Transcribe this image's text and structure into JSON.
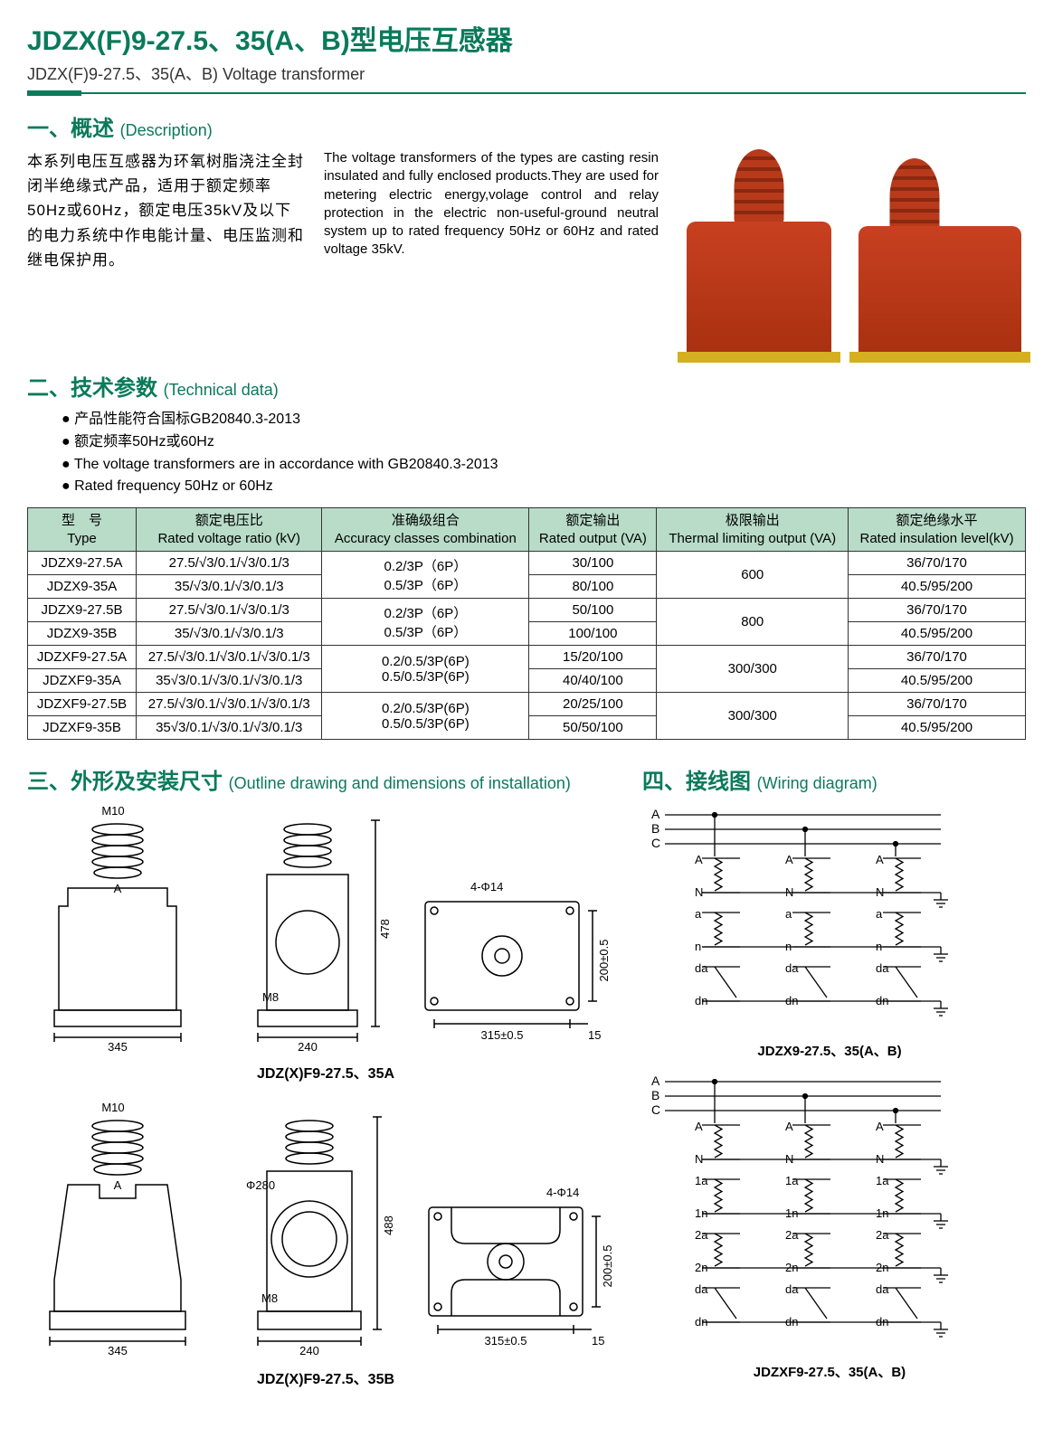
{
  "title": {
    "main": "JDZX(F)9-27.5、35(A、B)型电压互感器",
    "sub": "JDZX(F)9-27.5、35(A、B) Voltage transformer"
  },
  "sec_desc": {
    "heading_zh": "一、概述",
    "heading_en": "(Description)",
    "body_zh": "本系列电压互感器为环氧树脂浇注全封闭半绝缘式产品，适用于额定频率50Hz或60Hz，额定电压35kV及以下的电力系统中作电能计量、电压监测和继电保护用。",
    "body_en": "The voltage transformers of the types are casting resin insulated and fully enclosed products.They are used for metering electric energy,volage control and relay protection in the electric non-useful-ground neutral system up to rated frequency 50Hz or 60Hz and rated voltage 35kV."
  },
  "sec_tech": {
    "heading_zh": "二、技术参数",
    "heading_en": "(Technical data)",
    "bullets": [
      "产品性能符合国标GB20840.3-2013",
      "额定频率50Hz或60Hz",
      "The voltage transformers are in accordance with GB20840.3-2013",
      "Rated frequency 50Hz or 60Hz"
    ],
    "bullets_en_start": 2
  },
  "table": {
    "headers": [
      {
        "zh": "型　号",
        "en": "Type"
      },
      {
        "zh": "额定电压比",
        "en": "Rated voltage ratio (kV)"
      },
      {
        "zh": "准确级组合",
        "en": "Accuracy classes combination"
      },
      {
        "zh": "额定输出",
        "en": "Rated output (VA)"
      },
      {
        "zh": "极限输出",
        "en": "Thermal limiting output (VA)"
      },
      {
        "zh": "额定绝缘水平",
        "en": "Rated insulation level(kV)"
      }
    ],
    "groups": [
      {
        "accuracy": [
          "0.2/3P（6P）",
          "0.5/3P（6P）"
        ],
        "thermal": "600",
        "rows": [
          {
            "type": "JDZX9-27.5A",
            "ratio": "27.5/√3/0.1/√3/0.1/3",
            "rated": "30/100",
            "insul": "36/70/170"
          },
          {
            "type": "JDZX9-35A",
            "ratio": "35/√3/0.1/√3/0.1/3",
            "rated": "80/100",
            "insul": "40.5/95/200"
          }
        ]
      },
      {
        "accuracy": [
          "0.2/3P（6P）",
          "0.5/3P（6P）"
        ],
        "thermal": "800",
        "rows": [
          {
            "type": "JDZX9-27.5B",
            "ratio": "27.5/√3/0.1/√3/0.1/3",
            "rated": "50/100",
            "insul": "36/70/170"
          },
          {
            "type": "JDZX9-35B",
            "ratio": "35/√3/0.1/√3/0.1/3",
            "rated": "100/100",
            "insul": "40.5/95/200"
          }
        ]
      },
      {
        "accuracy": [
          "0.2/0.5/3P(6P)",
          "0.5/0.5/3P(6P)"
        ],
        "thermal": "300/300",
        "rows": [
          {
            "type": "JDZXF9-27.5A",
            "ratio": "27.5/√3/0.1/√3/0.1/√3/0.1/3",
            "rated": "15/20/100",
            "insul": "36/70/170"
          },
          {
            "type": "JDZXF9-35A",
            "ratio": "35√3/0.1/√3/0.1/√3/0.1/3",
            "rated": "40/40/100",
            "insul": "40.5/95/200"
          }
        ]
      },
      {
        "accuracy": [
          "0.2/0.5/3P(6P)",
          "0.5/0.5/3P(6P)"
        ],
        "thermal": "300/300",
        "rows": [
          {
            "type": "JDZXF9-27.5B",
            "ratio": "27.5/√3/0.1/√3/0.1/√3/0.1/3",
            "rated": "20/25/100",
            "insul": "36/70/170"
          },
          {
            "type": "JDZXF9-35B",
            "ratio": "35√3/0.1/√3/0.1/√3/0.1/3",
            "rated": "50/50/100",
            "insul": "40.5/95/200"
          }
        ]
      }
    ]
  },
  "sec_outline": {
    "heading_zh": "三、外形及安装尺寸",
    "heading_en": "(Outline drawing and dimensions of installation)",
    "set_a": {
      "label": "JDZ(X)F9-27.5、35A",
      "dims": {
        "M_top": "M10",
        "M_mid": "M8",
        "width1": "345",
        "width2": "240",
        "height": "478",
        "holes": "4-Φ14",
        "h200": "200±0.5",
        "w315": "315±0.5",
        "edge": "15",
        "A": "A"
      }
    },
    "set_b": {
      "label": "JDZ(X)F9-27.5、35B",
      "dims": {
        "M_top": "M10",
        "M_mid": "M8",
        "dia": "Φ280",
        "width1": "345",
        "width2": "240",
        "height": "488",
        "holes": "4-Φ14",
        "h200": "200±0.5",
        "w315": "315±0.5",
        "edge": "15",
        "A": "A"
      }
    }
  },
  "sec_wiring": {
    "heading_zh": "四、接线图",
    "heading_en": "(Wiring diagram)",
    "diag1": {
      "label": "JDZX9-27.5、35(A、B)",
      "phases": [
        "A",
        "B",
        "C"
      ],
      "primary": [
        "A",
        "N"
      ],
      "sec1": [
        "a",
        "n"
      ],
      "sec2": [
        "da",
        "dn"
      ]
    },
    "diag2": {
      "label": "JDZXF9-27.5、35(A、B)",
      "phases": [
        "A",
        "B",
        "C"
      ],
      "primary": [
        "A",
        "N"
      ],
      "sec1": [
        "1a",
        "1n"
      ],
      "sec2": [
        "2a",
        "2n"
      ],
      "sec3": [
        "da",
        "dn"
      ]
    }
  },
  "colors": {
    "green": "#0a7a5a",
    "header_bg": "#b8dcc8",
    "border": "#333"
  }
}
